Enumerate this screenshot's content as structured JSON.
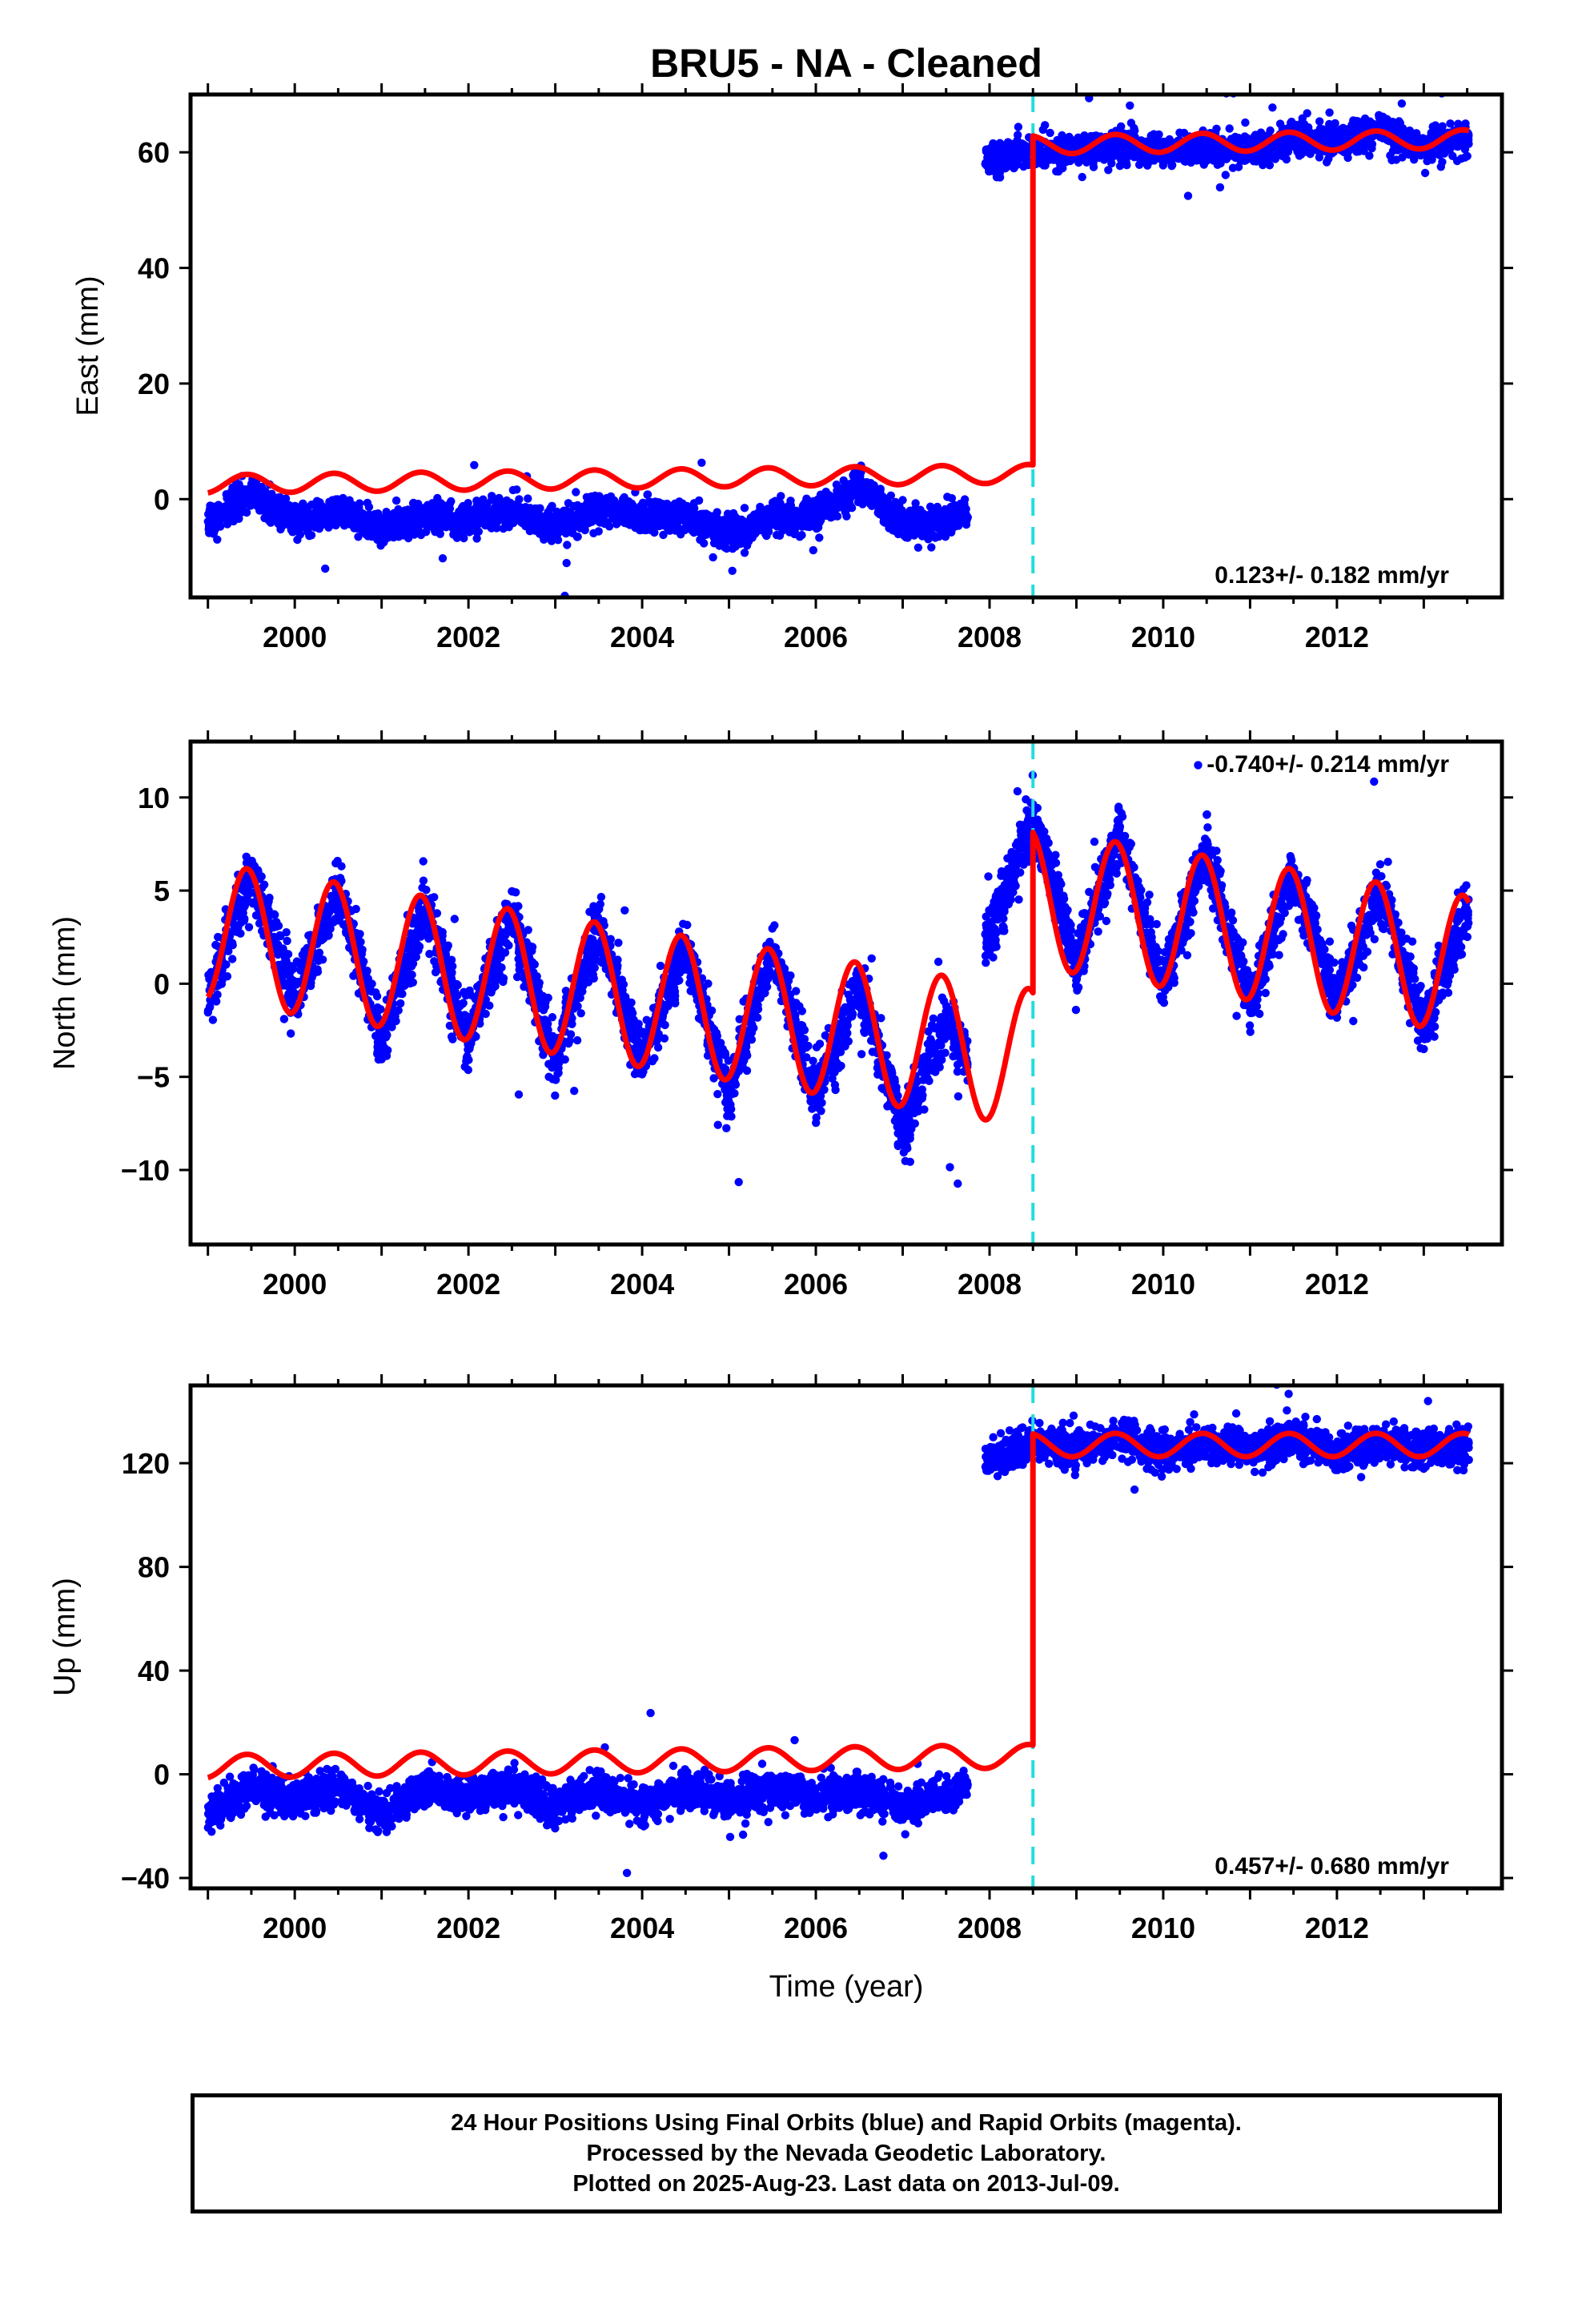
{
  "title": "BRU5  - NA - Cleaned",
  "colors": {
    "final_orbits": "#0000ff",
    "model": "#ff0000",
    "offset_line": "#22dddd",
    "frame": "#000000"
  },
  "x_axis": {
    "label": "Time (year)",
    "range": [
      1998.8,
      2013.9
    ],
    "tick_labels": [
      "2000",
      "2002",
      "2004",
      "2006",
      "2008",
      "2010",
      "2012"
    ],
    "tick_values": [
      2000,
      2002,
      2004,
      2006,
      2008,
      2010,
      2012
    ],
    "minor_tick_step": 0.5
  },
  "offset_epoch": 2008.5,
  "chart_data": [
    {
      "type": "scatter",
      "panel": "east",
      "ylabel": "East (mm)",
      "ylim": [
        -17,
        70
      ],
      "y_tick_values": [
        0,
        20,
        40,
        60
      ],
      "y_tick_labels": [
        "0",
        "20",
        "40",
        "60"
      ],
      "rate_annotation": "0.123+/- 0.182 mm/yr",
      "rate_position": "bottom-right",
      "data_start": 1999.0,
      "data_gap": [
        2007.75,
        2007.95
      ],
      "data_end": 2013.52,
      "point_color": "#0000ff",
      "observed_segments": [
        {
          "x": [
            1999.0,
            1999.5,
            2000.0,
            2000.5,
            2001.0,
            2001.5,
            2002.0,
            2002.5,
            2003.0,
            2003.5,
            2004.0,
            2004.5,
            2005.0,
            2005.5,
            2006.0,
            2006.5,
            2007.0,
            2007.5,
            2007.75
          ],
          "y": [
            -4,
            1,
            -4,
            -2,
            -5,
            -3,
            -4,
            -2,
            -5,
            -2,
            -3,
            -3,
            -6,
            -3,
            -3,
            2,
            -4,
            -4,
            -2
          ]
        },
        {
          "x": [
            2007.95,
            2008.5,
            2009.0,
            2009.5,
            2010.0,
            2010.5,
            2011.0,
            2011.5,
            2012.0,
            2012.5,
            2013.0,
            2013.52
          ],
          "y": [
            59,
            60,
            60,
            61,
            60,
            61,
            60,
            62,
            62,
            64,
            61,
            63
          ]
        }
      ],
      "model": {
        "offset_epoch": 2008.5,
        "segments": [
          {
            "x_start": 1999.0,
            "x_end": 2008.5,
            "y_start": 2.6,
            "y_end": 4.4,
            "annual_amplitude": 1.6,
            "annual_phase_peak": 0.45
          },
          {
            "x_start": 2008.5,
            "x_end": 2013.52,
            "y_start": 61.3,
            "y_end": 62.3,
            "annual_amplitude": 1.6,
            "annual_phase_peak": 0.45
          }
        ]
      }
    },
    {
      "type": "scatter",
      "panel": "north",
      "ylabel": "North (mm)",
      "ylim": [
        -14,
        13
      ],
      "y_tick_values": [
        -10,
        -5,
        0,
        5,
        10
      ],
      "y_tick_labels": [
        "−10",
        "−5",
        "0",
        "5",
        "10"
      ],
      "rate_annotation": "-0.740+/- 0.214 mm/yr",
      "rate_position": "top-right",
      "data_start": 1999.0,
      "data_gap": [
        2007.75,
        2007.95
      ],
      "data_end": 2013.52,
      "point_color": "#0000ff",
      "observed_segments": [
        {
          "x": [
            1999.0,
            1999.5,
            2000.0,
            2000.5,
            2001.0,
            2001.5,
            2002.0,
            2002.5,
            2003.0,
            2003.5,
            2004.0,
            2004.5,
            2005.0,
            2005.5,
            2006.0,
            2006.5,
            2007.0,
            2007.5,
            2007.75
          ],
          "y": [
            -1,
            6,
            -1,
            5,
            -3,
            4,
            -3,
            4,
            -4,
            3,
            -4,
            2,
            -6,
            2,
            -6,
            0,
            -8,
            -2,
            -4
          ]
        },
        {
          "x": [
            2007.95,
            2008.5,
            2009.0,
            2009.5,
            2010.0,
            2010.5,
            2011.0,
            2011.5,
            2012.0,
            2012.5,
            2013.0,
            2013.52
          ],
          "y": [
            2,
            9,
            1,
            8,
            0,
            7,
            -1,
            6,
            -1,
            5,
            -2,
            4
          ]
        }
      ],
      "model": {
        "offset_epoch": 2008.5,
        "segments": [
          {
            "x_start": 1999.0,
            "x_end": 2008.5,
            "y_start": 2.8,
            "y_end": -4.0,
            "annual_amplitude": 3.7,
            "annual_phase_peak": 0.45
          },
          {
            "x_start": 2008.5,
            "x_end": 2013.52,
            "y_start": 4.6,
            "y_end": 1.0,
            "annual_amplitude": 3.7,
            "annual_phase_peak": 0.45
          }
        ]
      }
    },
    {
      "type": "scatter",
      "panel": "up",
      "ylabel": "Up (mm)",
      "ylim": [
        -44,
        150
      ],
      "y_tick_values": [
        -40,
        0,
        40,
        80,
        120
      ],
      "y_tick_labels": [
        "−40",
        "0",
        "40",
        "80",
        "120"
      ],
      "rate_annotation": "0.457+/- 0.680 mm/yr",
      "rate_position": "bottom-right",
      "data_start": 1999.0,
      "data_gap": [
        2007.75,
        2007.95
      ],
      "data_end": 2013.52,
      "point_color": "#0000ff",
      "observed_segments": [
        {
          "x": [
            1999.0,
            1999.5,
            2000.0,
            2000.5,
            2001.0,
            2001.5,
            2002.0,
            2002.5,
            2003.0,
            2003.5,
            2004.0,
            2004.5,
            2005.0,
            2005.5,
            2006.0,
            2006.5,
            2007.0,
            2007.5,
            2007.75
          ],
          "y": [
            -15,
            -5,
            -10,
            -5,
            -15,
            -5,
            -8,
            -5,
            -12,
            -6,
            -12,
            -6,
            -10,
            -5,
            -10,
            -6,
            -12,
            -8,
            -5
          ]
        },
        {
          "x": [
            2007.95,
            2008.5,
            2009.0,
            2009.5,
            2010.0,
            2010.5,
            2011.0,
            2011.5,
            2012.0,
            2012.5,
            2013.0,
            2013.52
          ],
          "y": [
            120,
            128,
            125,
            130,
            124,
            128,
            125,
            130,
            124,
            128,
            126,
            127
          ]
        }
      ],
      "model": {
        "offset_epoch": 2008.5,
        "segments": [
          {
            "x_start": 1999.0,
            "x_end": 2008.5,
            "y_start": 3.0,
            "y_end": 7.0,
            "annual_amplitude": 4.5,
            "annual_phase_peak": 0.45
          },
          {
            "x_start": 2008.5,
            "x_end": 2013.52,
            "y_start": 127.0,
            "y_end": 127.0,
            "annual_amplitude": 4.5,
            "annual_phase_peak": 0.45
          }
        ]
      }
    }
  ],
  "footer": {
    "line1": "24 Hour Positions Using Final Orbits (blue) and Rapid Orbits (magenta).",
    "line2": "Processed by the Nevada Geodetic Laboratory.",
    "line3": "Plotted on 2025-Aug-23. Last data on 2013-Jul-09."
  }
}
